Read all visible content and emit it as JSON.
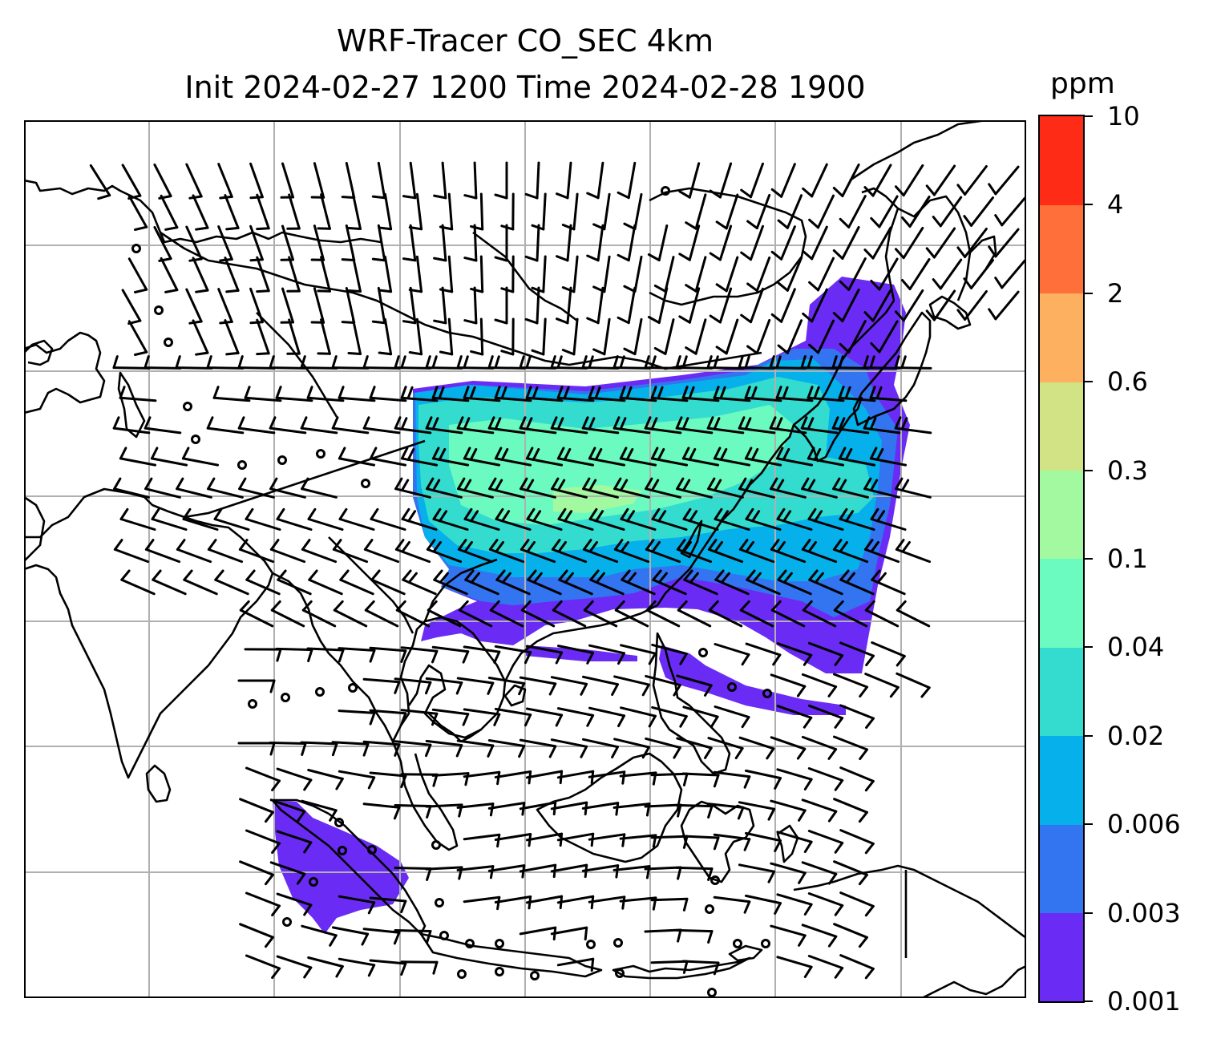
{
  "title_line1": "WRF-Tracer CO_SEC 4km",
  "title_line2": "Init 2024-02-27 1200 Time 2024-02-28 1900",
  "colorbar": {
    "unit": "ppm",
    "ticks": [
      "0.001",
      "0.003",
      "0.006",
      "0.02",
      "0.04",
      "0.1",
      "0.3",
      "0.6",
      "2",
      "4",
      "10"
    ],
    "colors": [
      "#6a2cf5",
      "#3374f0",
      "#06b0ea",
      "#33dccf",
      "#6bfbc0",
      "#a3f9a0",
      "#d2e385",
      "#fcb060",
      "#fe6f3a",
      "#fe2c16"
    ]
  },
  "map": {
    "background": "#ffffff",
    "gridlines": true,
    "grid_color": "#b0b0b0",
    "coastline_color": "#000000",
    "wind_barb_color": "#000000"
  }
}
